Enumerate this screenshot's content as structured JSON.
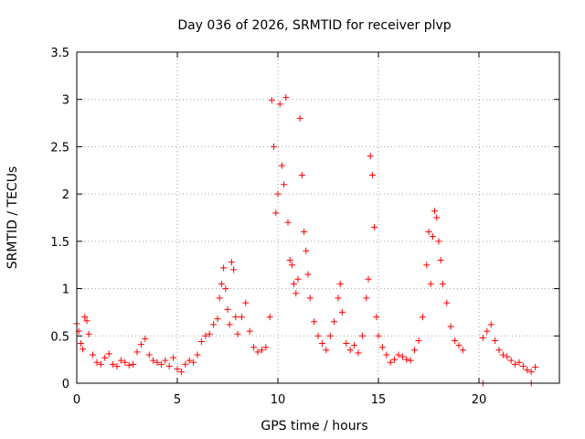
{
  "chart_data": {
    "type": "scatter",
    "title": "Day 036 of 2026, SRMTID for receiver plvp",
    "xlabel": "GPS time / hours",
    "ylabel": "SRMTID / TECUs",
    "xlim": [
      0,
      24
    ],
    "ylim": [
      0,
      3.5
    ],
    "xticks": [
      0,
      5,
      10,
      15,
      20
    ],
    "xtick_labels": [
      "0",
      "5",
      "10",
      "15",
      "20"
    ],
    "yticks": [
      0,
      0.5,
      1,
      1.5,
      2,
      2.5,
      3,
      3.5
    ],
    "ytick_labels": [
      "0",
      "0.5",
      "1",
      "1.5",
      "2",
      "2.5",
      "3",
      "3.5"
    ],
    "grid": true,
    "marker": "+",
    "color": "#ff0000",
    "series": [
      {
        "name": "SRMTID",
        "x": [
          0.0,
          0.1,
          0.2,
          0.3,
          0.4,
          0.5,
          0.6,
          0.8,
          1.0,
          1.2,
          1.4,
          1.6,
          1.8,
          2.0,
          2.2,
          2.4,
          2.6,
          2.8,
          3.0,
          3.2,
          3.4,
          3.6,
          3.8,
          4.0,
          4.2,
          4.4,
          4.6,
          4.8,
          5.0,
          5.2,
          5.4,
          5.6,
          5.8,
          6.0,
          6.2,
          6.4,
          6.6,
          6.8,
          7.0,
          7.1,
          7.2,
          7.3,
          7.4,
          7.5,
          7.6,
          7.7,
          7.8,
          7.9,
          8.0,
          8.2,
          8.4,
          8.6,
          8.8,
          9.0,
          9.2,
          9.4,
          9.6,
          9.7,
          9.8,
          9.9,
          10.0,
          10.1,
          10.2,
          10.3,
          10.4,
          10.5,
          10.6,
          10.7,
          10.8,
          10.9,
          11.0,
          11.1,
          11.2,
          11.3,
          11.4,
          11.5,
          11.6,
          11.8,
          12.0,
          12.2,
          12.4,
          12.6,
          12.8,
          13.0,
          13.1,
          13.2,
          13.4,
          13.6,
          13.8,
          14.0,
          14.2,
          14.4,
          14.5,
          14.6,
          14.7,
          14.8,
          14.9,
          15.0,
          15.2,
          15.4,
          15.6,
          15.8,
          16.0,
          16.2,
          16.4,
          16.6,
          16.8,
          17.0,
          17.2,
          17.4,
          17.5,
          17.6,
          17.7,
          17.8,
          17.9,
          18.0,
          18.1,
          18.2,
          18.4,
          18.6,
          18.8,
          19.0,
          19.2,
          20.2,
          20.4,
          20.6,
          20.8,
          21.0,
          21.2,
          21.4,
          21.6,
          21.8,
          22.0,
          22.2,
          22.4,
          22.6,
          22.8
        ],
        "y": [
          0.63,
          0.55,
          0.42,
          0.36,
          0.7,
          0.66,
          0.52,
          0.3,
          0.22,
          0.2,
          0.27,
          0.31,
          0.2,
          0.18,
          0.24,
          0.22,
          0.19,
          0.2,
          0.33,
          0.41,
          0.47,
          0.3,
          0.24,
          0.22,
          0.2,
          0.24,
          0.18,
          0.27,
          0.15,
          0.12,
          0.2,
          0.24,
          0.22,
          0.3,
          0.44,
          0.5,
          0.52,
          0.62,
          0.68,
          0.9,
          1.05,
          1.22,
          1.0,
          0.78,
          0.62,
          1.28,
          1.2,
          0.7,
          0.52,
          0.7,
          0.85,
          0.55,
          0.38,
          0.33,
          0.35,
          0.38,
          0.7,
          2.99,
          2.5,
          1.8,
          2.0,
          2.95,
          2.3,
          2.1,
          3.02,
          1.7,
          1.3,
          1.25,
          1.05,
          0.95,
          1.1,
          2.8,
          2.2,
          1.6,
          1.4,
          1.15,
          0.9,
          0.65,
          0.5,
          0.42,
          0.35,
          0.5,
          0.65,
          0.9,
          1.05,
          0.75,
          0.42,
          0.35,
          0.4,
          0.32,
          0.5,
          0.9,
          1.1,
          2.4,
          2.2,
          1.65,
          0.7,
          0.5,
          0.38,
          0.3,
          0.22,
          0.25,
          0.3,
          0.28,
          0.25,
          0.24,
          0.35,
          0.45,
          0.7,
          1.25,
          1.6,
          1.05,
          1.55,
          1.82,
          1.75,
          1.5,
          1.3,
          1.05,
          0.85,
          0.6,
          0.45,
          0.4,
          0.35,
          0.48,
          0.55,
          0.62,
          0.45,
          0.35,
          0.3,
          0.28,
          0.24,
          0.2,
          0.22,
          0.18,
          0.14,
          0.12,
          0.17
        ]
      },
      {
        "name": "zero-level markers",
        "x": [
          20.2,
          22.6
        ],
        "y": [
          0.0,
          0.0
        ]
      }
    ]
  }
}
